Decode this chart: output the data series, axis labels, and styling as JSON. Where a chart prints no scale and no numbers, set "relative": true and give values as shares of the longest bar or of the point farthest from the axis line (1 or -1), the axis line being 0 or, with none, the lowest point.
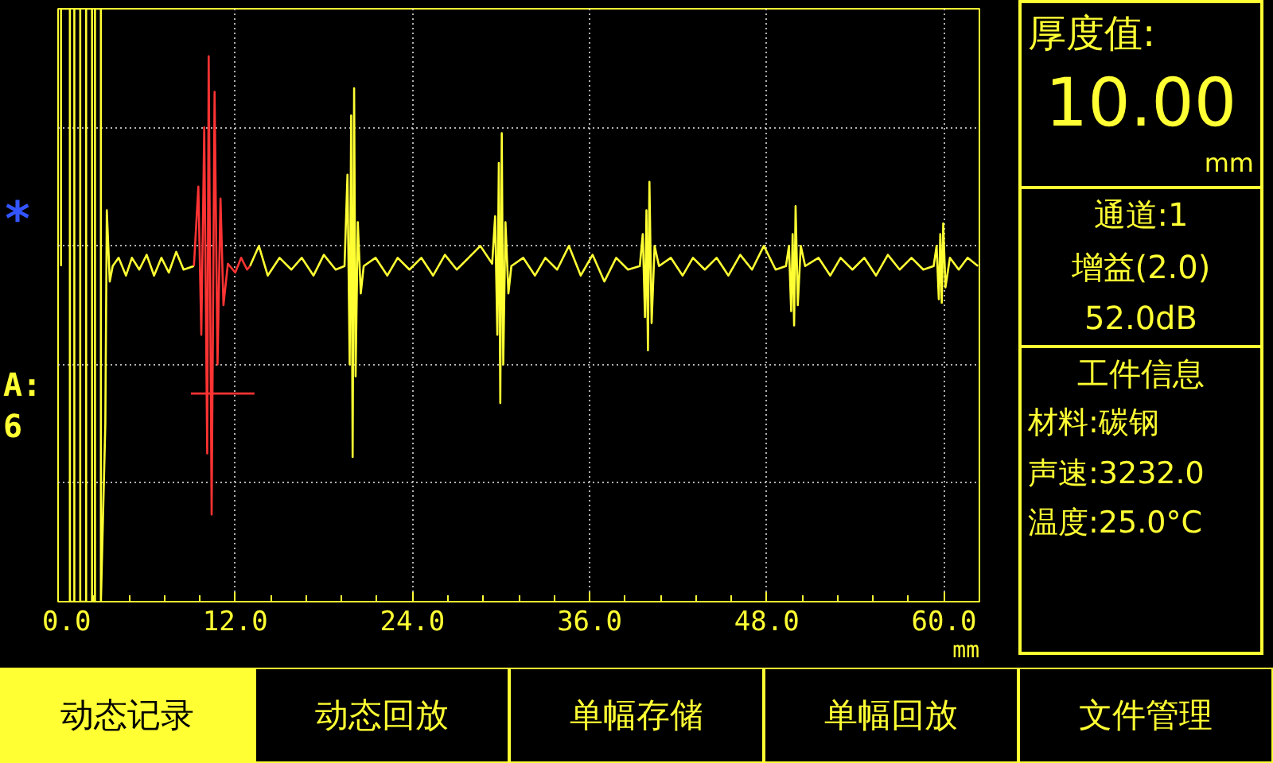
{
  "chart_data": [
    {
      "type": "line",
      "relative": true,
      "xlabel": "mm",
      "grid": true,
      "xlim": [
        0,
        62.4
      ],
      "xticks": [
        {
          "value": 0,
          "label": "0.0"
        },
        {
          "value": 12,
          "label": "12.0"
        },
        {
          "value": 24,
          "label": "24.0"
        },
        {
          "value": 36,
          "label": "36.0"
        },
        {
          "value": 48,
          "label": "48.0"
        },
        {
          "value": 60,
          "label": "60.0"
        }
      ],
      "annotations": [
        "*",
        "A:",
        "6"
      ],
      "series": [
        {
          "color": "#ffff33",
          "x": [
            0.2,
            0.2,
            0.8,
            0.8,
            1.1,
            1.1,
            1.5,
            1.5,
            1.9,
            1.9,
            2.3,
            2.3,
            2.5,
            2.5,
            2.9,
            2.9,
            3.2,
            3.3,
            3.5,
            3.7,
            4.1,
            4.6,
            5.0,
            5.5,
            6.0,
            6.5,
            7.0,
            7.5,
            8.0,
            8.5,
            9.2,
            11.0,
            13.0,
            13.6,
            14.2,
            15.0,
            15.8,
            16.5,
            17.3,
            18.0,
            18.8,
            19.4,
            19.6,
            19.75,
            19.85,
            19.95,
            20.05,
            20.15,
            20.3,
            20.5,
            20.7,
            21.5,
            22.3,
            23.0,
            23.8,
            24.6,
            25.4,
            26.2,
            27.0,
            27.8,
            28.6,
            29.4,
            29.6,
            29.75,
            29.85,
            29.95,
            30.05,
            30.15,
            30.3,
            30.5,
            30.7,
            31.5,
            32.3,
            33.0,
            33.8,
            34.6,
            35.4,
            36.2,
            37.0,
            37.8,
            38.6,
            39.4,
            39.6,
            39.75,
            39.85,
            39.95,
            40.05,
            40.2,
            40.4,
            40.7,
            41.5,
            42.3,
            43.0,
            43.8,
            44.6,
            45.4,
            46.2,
            47.0,
            47.8,
            48.6,
            49.3,
            49.5,
            49.65,
            49.75,
            49.85,
            49.95,
            50.1,
            50.3,
            50.6,
            51.5,
            52.3,
            53.0,
            53.8,
            54.6,
            55.4,
            56.2,
            57.0,
            57.8,
            58.6,
            59.3,
            59.5,
            59.65,
            59.75,
            59.85,
            59.95,
            60.1,
            60.4,
            61.0,
            61.6,
            62.3
          ],
          "values": [
            0.566,
            1,
            1,
            0,
            0,
            1,
            1,
            0,
            0,
            1,
            1,
            0,
            0,
            1,
            1,
            0,
            0.3,
            0.66,
            0.54,
            0.566,
            0.58,
            0.55,
            0.58,
            0.56,
            0.585,
            0.55,
            0.58,
            0.555,
            0.59,
            0.56,
            0.566,
            null,
            0.566,
            0.6,
            0.55,
            0.58,
            0.56,
            0.58,
            0.55,
            0.585,
            0.56,
            0.566,
            0.72,
            0.4,
            0.82,
            0.244,
            0.866,
            0.38,
            0.64,
            0.52,
            0.566,
            0.58,
            0.55,
            0.58,
            0.56,
            0.58,
            0.55,
            0.585,
            0.56,
            0.58,
            0.6,
            0.57,
            0.65,
            0.45,
            0.74,
            0.335,
            0.79,
            0.4,
            0.64,
            0.52,
            0.566,
            0.58,
            0.55,
            0.58,
            0.56,
            0.6,
            0.55,
            0.585,
            0.54,
            0.58,
            0.56,
            0.566,
            0.62,
            0.48,
            0.66,
            0.424,
            0.708,
            0.47,
            0.6,
            0.566,
            0.58,
            0.55,
            0.58,
            0.56,
            0.58,
            0.55,
            0.585,
            0.56,
            0.6,
            0.56,
            0.566,
            0.6,
            0.49,
            0.62,
            0.466,
            0.667,
            0.5,
            0.6,
            0.566,
            0.58,
            0.55,
            0.58,
            0.56,
            0.58,
            0.55,
            0.585,
            0.56,
            0.58,
            0.56,
            0.566,
            0.6,
            0.51,
            0.62,
            0.504,
            0.638,
            0.53,
            0.58,
            0.56,
            0.58,
            0.566
          ]
        },
        {
          "color": "#ff3333",
          "x": [
            9.2,
            9.5,
            9.7,
            9.9,
            10.1,
            10.2,
            10.4,
            10.6,
            10.8,
            11.0,
            11.2,
            11.5,
            12.0,
            12.4,
            12.8,
            13.0
          ],
          "values": [
            0.566,
            0.7,
            0.45,
            0.8,
            0.25,
            0.92,
            0.147,
            0.86,
            0.4,
            0.68,
            0.5,
            0.57,
            0.555,
            0.58,
            0.56,
            0.566
          ]
        },
        {
          "color": "#ff3333",
          "x": [
            9.0,
            13.3
          ],
          "values": [
            0.351,
            0.351
          ]
        }
      ]
    },
    {
      "type": "other",
      "annotations": [
        "厚度值:",
        "10.00",
        "mm",
        "通道:1",
        "增益(2.0)",
        "52.0dB",
        "工件信息",
        "材料:碳钢",
        "声速:3232.0",
        "温度:25.0°C"
      ]
    },
    {
      "type": "other",
      "annotations": [
        "动态记录",
        "动态回放",
        "单幅存储",
        "单幅回放",
        "文件管理"
      ]
    }
  ]
}
